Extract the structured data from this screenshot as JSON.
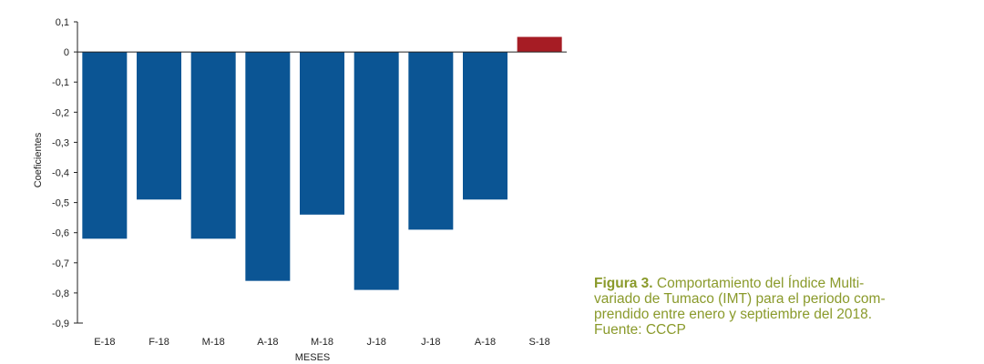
{
  "chart_data": {
    "type": "bar",
    "categories": [
      "E-18",
      "F-18",
      "M-18",
      "A-18",
      "M-18",
      "J-18",
      "J-18",
      "A-18",
      "S-18"
    ],
    "values": [
      -0.62,
      -0.49,
      -0.62,
      -0.76,
      -0.54,
      -0.79,
      -0.59,
      -0.49,
      0.05
    ],
    "colors": [
      "#0b5594",
      "#0b5594",
      "#0b5594",
      "#0b5594",
      "#0b5594",
      "#0b5594",
      "#0b5594",
      "#0b5594",
      "#a61c24"
    ],
    "ylim": [
      -0.9,
      0.1
    ],
    "yticks": [
      0.1,
      0,
      -0.1,
      -0.2,
      -0.3,
      -0.4,
      -0.5,
      -0.6,
      -0.7,
      -0.8,
      -0.9
    ],
    "ytick_labels": [
      "0,1",
      "0",
      "-0,1",
      "-0,2",
      "-0,3",
      "-0,4",
      "-0,5",
      "-0,6",
      "-0,7",
      "-0,8",
      "-0,9"
    ],
    "xlabel": "MESES",
    "ylabel": "Coeficientes",
    "grid": false
  },
  "caption": {
    "label": "Figura 3.",
    "line1": " Comportamiento del Índice Multi-",
    "line2": "variado de Tumaco (IMT) para el periodo com-",
    "line3": "prendido entre enero y septiembre del 2018.",
    "line4": "Fuente: CCCP"
  }
}
